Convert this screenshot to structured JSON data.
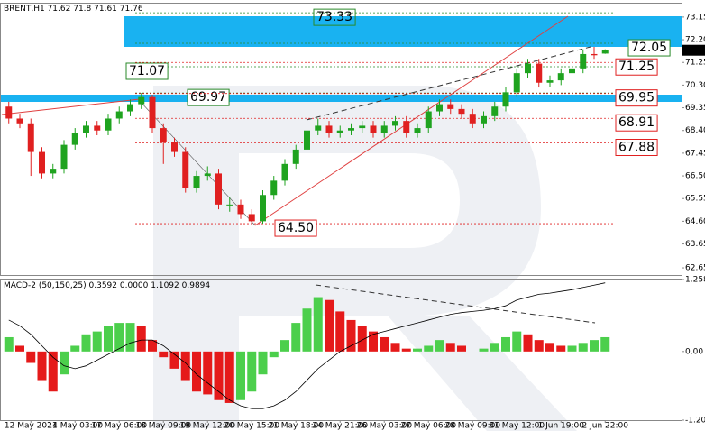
{
  "chart_data": [
    {
      "type": "candlestick",
      "title": "BRENT,H1",
      "up_color": "#1fa31f",
      "down_color": "#e02020",
      "open": [
        69.4,
        68.9,
        68.7,
        67.5,
        66.6,
        66.8,
        67.8,
        68.3,
        68.6,
        68.4,
        68.9,
        69.2,
        69.5,
        69.8,
        68.5,
        67.9,
        67.5,
        66.0,
        66.5,
        66.6,
        65.3,
        65.3,
        64.9,
        64.6,
        65.7,
        66.3,
        67.0,
        67.6,
        68.4,
        68.6,
        68.3,
        68.4,
        68.5,
        68.6,
        68.3,
        68.6,
        68.8,
        68.3,
        68.5,
        69.2,
        69.5,
        69.3,
        69.1,
        68.7,
        69.0,
        69.4,
        70.0,
        70.8,
        71.2,
        70.4,
        70.5,
        70.8,
        71.0,
        71.6,
        71.62
      ],
      "high": [
        69.6,
        69.1,
        68.9,
        67.7,
        67.0,
        68.0,
        68.5,
        68.8,
        68.8,
        69.1,
        69.4,
        69.7,
        69.97,
        69.9,
        68.7,
        68.1,
        67.7,
        66.7,
        66.9,
        66.8,
        65.6,
        65.5,
        65.1,
        65.9,
        66.5,
        67.2,
        67.8,
        68.6,
        68.9,
        68.8,
        68.6,
        68.7,
        68.8,
        68.8,
        68.8,
        69.0,
        69.0,
        68.7,
        69.4,
        69.7,
        69.7,
        69.5,
        69.3,
        69.2,
        69.6,
        70.2,
        71.0,
        71.4,
        71.4,
        70.7,
        71.0,
        71.2,
        71.8,
        71.9,
        71.8
      ],
      "low": [
        68.7,
        68.5,
        66.5,
        66.4,
        66.4,
        66.6,
        67.6,
        68.1,
        68.2,
        68.2,
        68.7,
        69.0,
        69.3,
        68.3,
        67.0,
        67.3,
        65.8,
        65.8,
        66.3,
        65.1,
        65.0,
        64.7,
        64.5,
        64.5,
        65.5,
        66.1,
        66.8,
        67.4,
        68.2,
        68.1,
        68.1,
        68.2,
        68.3,
        68.1,
        68.1,
        68.4,
        68.1,
        68.1,
        68.3,
        69.0,
        69.1,
        68.9,
        68.5,
        68.5,
        68.8,
        69.2,
        69.8,
        70.6,
        70.2,
        70.2,
        70.3,
        70.6,
        70.8,
        71.4,
        71.61
      ],
      "close": [
        68.9,
        68.7,
        67.5,
        66.6,
        66.8,
        67.8,
        68.3,
        68.6,
        68.4,
        68.9,
        69.2,
        69.5,
        69.8,
        68.5,
        67.9,
        67.5,
        66.0,
        66.5,
        66.6,
        65.3,
        65.3,
        64.9,
        64.6,
        65.7,
        66.3,
        67.0,
        67.6,
        68.4,
        68.6,
        68.3,
        68.4,
        68.5,
        68.6,
        68.3,
        68.6,
        68.8,
        68.3,
        68.5,
        69.2,
        69.5,
        69.3,
        69.1,
        68.7,
        69.0,
        69.4,
        70.0,
        70.8,
        71.2,
        70.4,
        70.5,
        70.8,
        71.0,
        71.6,
        71.55,
        71.76
      ],
      "ylim": [
        62.35,
        73.75
      ],
      "yticks": [
        73.15,
        {
          "value": 72.2,
          "label": "72.20"
        },
        71.25,
        {
          "value": 70.3,
          "label": "70.30"
        },
        69.35,
        {
          "value": 68.4,
          "label": "68.40"
        },
        67.45,
        {
          "value": 66.5,
          "label": "66.50"
        },
        65.55,
        {
          "value": 64.6,
          "label": "64.60"
        },
        63.65,
        62.65
      ],
      "annotations": [
        {
          "value": 73.33,
          "color": "#2a8a2a"
        },
        {
          "value": 72.05,
          "color": "#2a8a2a"
        },
        {
          "value": 71.07,
          "color": "#2a8a2a"
        },
        {
          "value": 69.97,
          "color": "#2a8a2a"
        },
        {
          "value": 71.25,
          "color": "#e02020"
        },
        {
          "value": 69.95,
          "color": "#e02020"
        },
        {
          "value": 68.91,
          "color": "#e02020"
        },
        {
          "value": 67.88,
          "color": "#e02020"
        },
        {
          "value": 64.5,
          "label": "64.50",
          "color": "#e02020"
        }
      ]
    },
    {
      "type": "bar",
      "title": "MACD-2 (50,150,25)",
      "readout": [
        "0.3592",
        "0.0000",
        "1.1092",
        "0.9894"
      ],
      "up_color": "#4ccf4c",
      "down_color": "#e51a1a",
      "categories": [
        null,
        null,
        "12 May 2021",
        null,
        null,
        null,
        "14 May 03:00",
        null,
        null,
        null,
        "17 May 06:00",
        null,
        null,
        null,
        "18 May 09:00",
        null,
        null,
        null,
        "19 May 12:00",
        null,
        null,
        null,
        "20 May 15:00",
        null,
        null,
        null,
        "21 May 18:00",
        null,
        null,
        null,
        "24 May 21:00",
        null,
        null,
        null,
        "26 May 03:00",
        null,
        null,
        null,
        "27 May 06:00",
        null,
        null,
        null,
        "28 May 09:00",
        null,
        null,
        null,
        "31 May 12:00",
        null,
        null,
        null,
        "1 Jun 19:00",
        null,
        null,
        null,
        "2 Jun 22:00"
      ],
      "values": [
        0.25,
        0.1,
        -0.2,
        -0.5,
        -0.7,
        -0.4,
        0.1,
        0.3,
        0.35,
        0.45,
        0.5,
        0.5,
        0.45,
        0.2,
        -0.1,
        -0.3,
        -0.5,
        -0.7,
        -0.75,
        -0.85,
        -0.9,
        -0.85,
        -0.7,
        -0.4,
        -0.1,
        0.2,
        0.5,
        0.75,
        0.95,
        0.9,
        0.7,
        0.55,
        0.45,
        0.35,
        0.25,
        0.15,
        0.05,
        0.05,
        0.1,
        0.2,
        0.15,
        0.1,
        0.0,
        0.05,
        0.15,
        0.25,
        0.35,
        0.3,
        0.2,
        0.15,
        0.1,
        0.1,
        0.15,
        0.2,
        0.25
      ],
      "signal": [
        0.55,
        0.45,
        0.3,
        0.1,
        -0.1,
        -0.25,
        -0.3,
        -0.25,
        -0.15,
        -0.05,
        0.05,
        0.15,
        0.2,
        0.2,
        0.1,
        -0.05,
        -0.2,
        -0.4,
        -0.55,
        -0.7,
        -0.85,
        -0.95,
        -1.0,
        -1.0,
        -0.95,
        -0.85,
        -0.7,
        -0.5,
        -0.3,
        -0.15,
        0.0,
        0.1,
        0.2,
        0.3,
        0.35,
        0.4,
        0.45,
        0.5,
        0.55,
        0.6,
        0.65,
        0.68,
        0.7,
        0.72,
        0.75,
        0.8,
        0.9,
        0.95,
        1.0,
        1.02,
        1.05,
        1.08,
        1.12,
        1.16,
        1.2
      ],
      "signal_color": "#000000",
      "ylim": [
        -1.2004,
        1.2581
      ],
      "yticks": [
        1.2581,
        {
          "value": 0,
          "label": "0.00"
        },
        -1.2004
      ]
    }
  ]
}
